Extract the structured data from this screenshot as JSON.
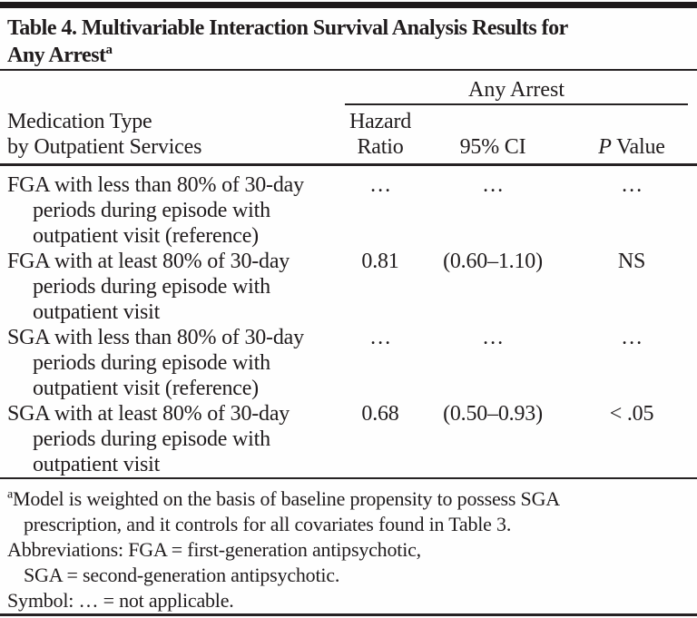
{
  "table": {
    "title": {
      "text": "Table 4. Multivariable Interaction Survival Analysis Results for\nAny Arrest",
      "superscript": "a"
    },
    "header": {
      "spanner": "Any Arrest",
      "stub": "Medication Type\nby Outpatient Services",
      "hazard_ratio": "Hazard\nRatio",
      "ci": "95% CI",
      "p_value": {
        "italic": "P",
        "rest": " Value"
      }
    },
    "rows": [
      {
        "label": "FGA with less than 80% of 30-day\nperiods during episode with\noutpatient visit (reference)",
        "hazard_ratio": "…",
        "ci": "…",
        "p_value": "…"
      },
      {
        "label": "FGA with at least 80% of 30-day\nperiods during episode with\noutpatient visit",
        "hazard_ratio": "0.81",
        "ci": "(0.60–1.10)",
        "p_value": "NS"
      },
      {
        "label": "SGA with less than 80% of 30-day\nperiods during episode with\noutpatient visit (reference)",
        "hazard_ratio": "…",
        "ci": "…",
        "p_value": "…"
      },
      {
        "label": "SGA with at least 80% of 30-day\nperiods during episode with\noutpatient visit",
        "hazard_ratio": "0.68",
        "ci": "(0.50–0.93)",
        "p_value": "< .05"
      }
    ],
    "footnotes": {
      "model": {
        "sup": "a",
        "text": "Model is weighted on the basis of baseline propensity to possess SGA\nprescription, and it controls for all covariates found in Table 3."
      },
      "abbreviations": {
        "text": "Abbreviations: FGA = first-generation antipsychotic,\nSGA = second-generation antipsychotic."
      },
      "symbol": {
        "text": "Symbol: … = not applicable."
      }
    },
    "colors": {
      "text": "#201c1d",
      "rule": "#262223",
      "background": "#fefefe"
    }
  }
}
